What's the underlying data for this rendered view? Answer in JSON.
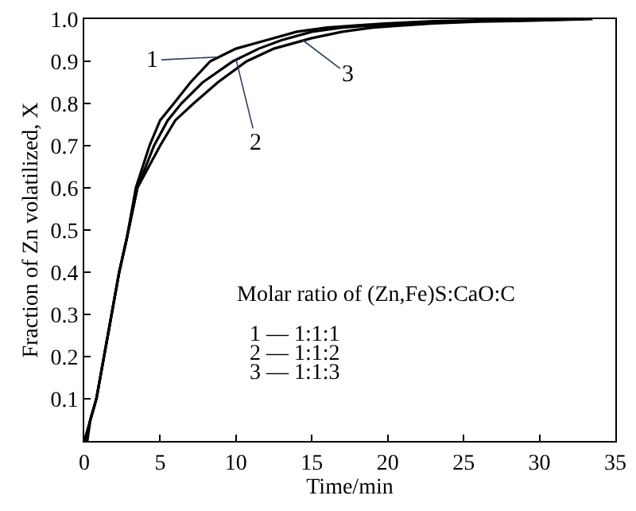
{
  "chart_data": {
    "type": "line",
    "xlabel": "Time/min",
    "ylabel": "Fraction of Zn volatilized, X",
    "xlim": [
      0,
      35
    ],
    "ylim": [
      0,
      1.0
    ],
    "xticks": [
      0,
      5,
      10,
      15,
      20,
      25,
      30,
      35
    ],
    "yticks": [
      {
        "value": 0,
        "label": null
      },
      0.1,
      0.2,
      0.3,
      0.4,
      0.5,
      0.6,
      0.7,
      0.8,
      0.9,
      {
        "value": 1.0,
        "label": "1.0"
      }
    ],
    "marker": "none",
    "line_style": "solid",
    "series": [
      {
        "color": "#000000",
        "x": [
          0,
          0.4,
          0.8,
          1.3,
          1.8,
          2.3,
          2.8,
          3.4,
          4.3,
          5.0,
          5.9,
          7.0,
          8.3,
          10.0,
          12.0,
          14.0,
          16.0,
          18.0,
          20.0,
          23.0,
          26.0,
          30.0,
          33.0
        ],
        "values": [
          0,
          0.05,
          0.1,
          0.2,
          0.3,
          0.4,
          0.48,
          0.6,
          0.7,
          0.76,
          0.8,
          0.85,
          0.9,
          0.93,
          0.95,
          0.97,
          0.98,
          0.985,
          0.99,
          0.995,
          0.997,
          0.998,
          1.0
        ]
      },
      {
        "color": "#000000",
        "x": [
          0.1,
          0.4,
          0.8,
          1.3,
          1.8,
          2.3,
          2.8,
          3.5,
          4.6,
          5.5,
          6.4,
          7.8,
          9.8,
          11.5,
          13.0,
          15.0,
          17.0,
          19.0,
          21.0,
          24.0,
          27.0,
          30.0,
          32.0
        ],
        "values": [
          0,
          0.05,
          0.1,
          0.2,
          0.3,
          0.4,
          0.48,
          0.6,
          0.7,
          0.76,
          0.8,
          0.85,
          0.9,
          0.93,
          0.95,
          0.97,
          0.98,
          0.985,
          0.99,
          0.994,
          0.996,
          0.998,
          1.0
        ]
      },
      {
        "color": "#000000",
        "x": [
          0.2,
          0.4,
          0.8,
          1.3,
          1.8,
          2.3,
          2.8,
          3.5,
          5.0,
          6.0,
          7.2,
          8.8,
          10.7,
          12.5,
          15.0,
          17.0,
          19.0,
          21.0,
          23.0,
          26.0,
          29.0,
          31.0,
          33.5
        ],
        "values": [
          0,
          0.05,
          0.1,
          0.2,
          0.3,
          0.4,
          0.48,
          0.6,
          0.7,
          0.76,
          0.8,
          0.85,
          0.9,
          0.93,
          0.955,
          0.97,
          0.98,
          0.985,
          0.99,
          0.994,
          0.996,
          0.998,
          1.0
        ]
      }
    ],
    "annotations": [
      {
        "text": "1",
        "x": 8.7,
        "y": 0.91
      },
      {
        "text": "2",
        "x": 10.0,
        "y": 0.905
      },
      {
        "text": "3",
        "x": 14.4,
        "y": 0.95
      },
      "Molar ratio of (Zn,Fe)S:CaO:C",
      "1 — 1:1:1",
      "2 — 1:1:2",
      "3 — 1:1:3"
    ]
  }
}
